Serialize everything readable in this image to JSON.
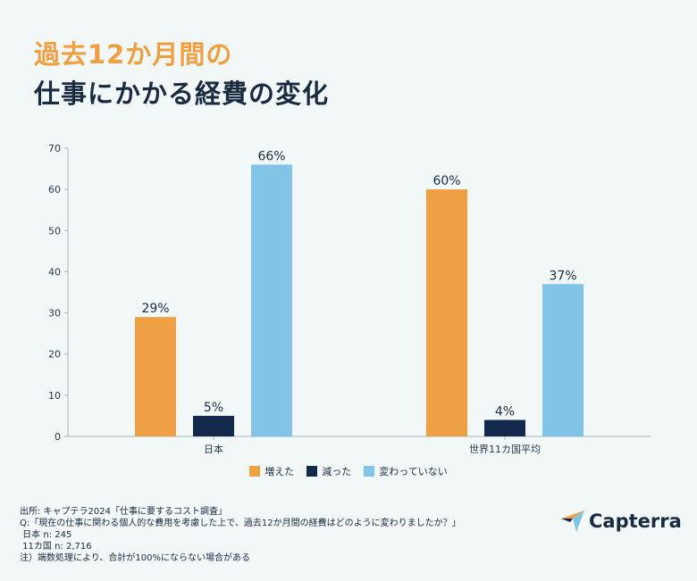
{
  "title": {
    "line1": "過去12か月間の",
    "line2": "仕事にかかる経費の変化"
  },
  "colors": {
    "increased": "#f0a044",
    "decreased": "#13294b",
    "unchanged": "#82c3e8"
  },
  "chart_data": {
    "type": "bar",
    "categories": [
      "日本",
      "世界11カ国平均"
    ],
    "series": [
      {
        "name": "増えた",
        "values": [
          29,
          60
        ],
        "labels": [
          "29%",
          "60%"
        ]
      },
      {
        "name": "減った",
        "values": [
          5,
          4
        ],
        "labels": [
          "5%",
          "4%"
        ]
      },
      {
        "name": "変わっていない",
        "values": [
          66,
          37
        ],
        "labels": [
          "66%",
          "37%"
        ]
      }
    ],
    "ylim": [
      0,
      70
    ],
    "yticks": [
      "0",
      "10",
      "20",
      "30",
      "40",
      "50",
      "60",
      "70"
    ],
    "legend_position": "bottom",
    "grid": false
  },
  "footer": {
    "source": "出所: キャプテラ2024「仕事に要するコスト調査」",
    "question": "Q:「現在の仕事に関わる個人的な費用を考慮した上で、過去12か月間の経費はどのように変わりましたか？」",
    "n_japan": " 日本 n: 245",
    "n_11": " 11カ国 n: 2,716",
    "note": "注）端数処理により、合計が100%にならない場合がある"
  },
  "logo": {
    "text": "Capterra",
    "icon": "capterra-arrow-icon"
  }
}
